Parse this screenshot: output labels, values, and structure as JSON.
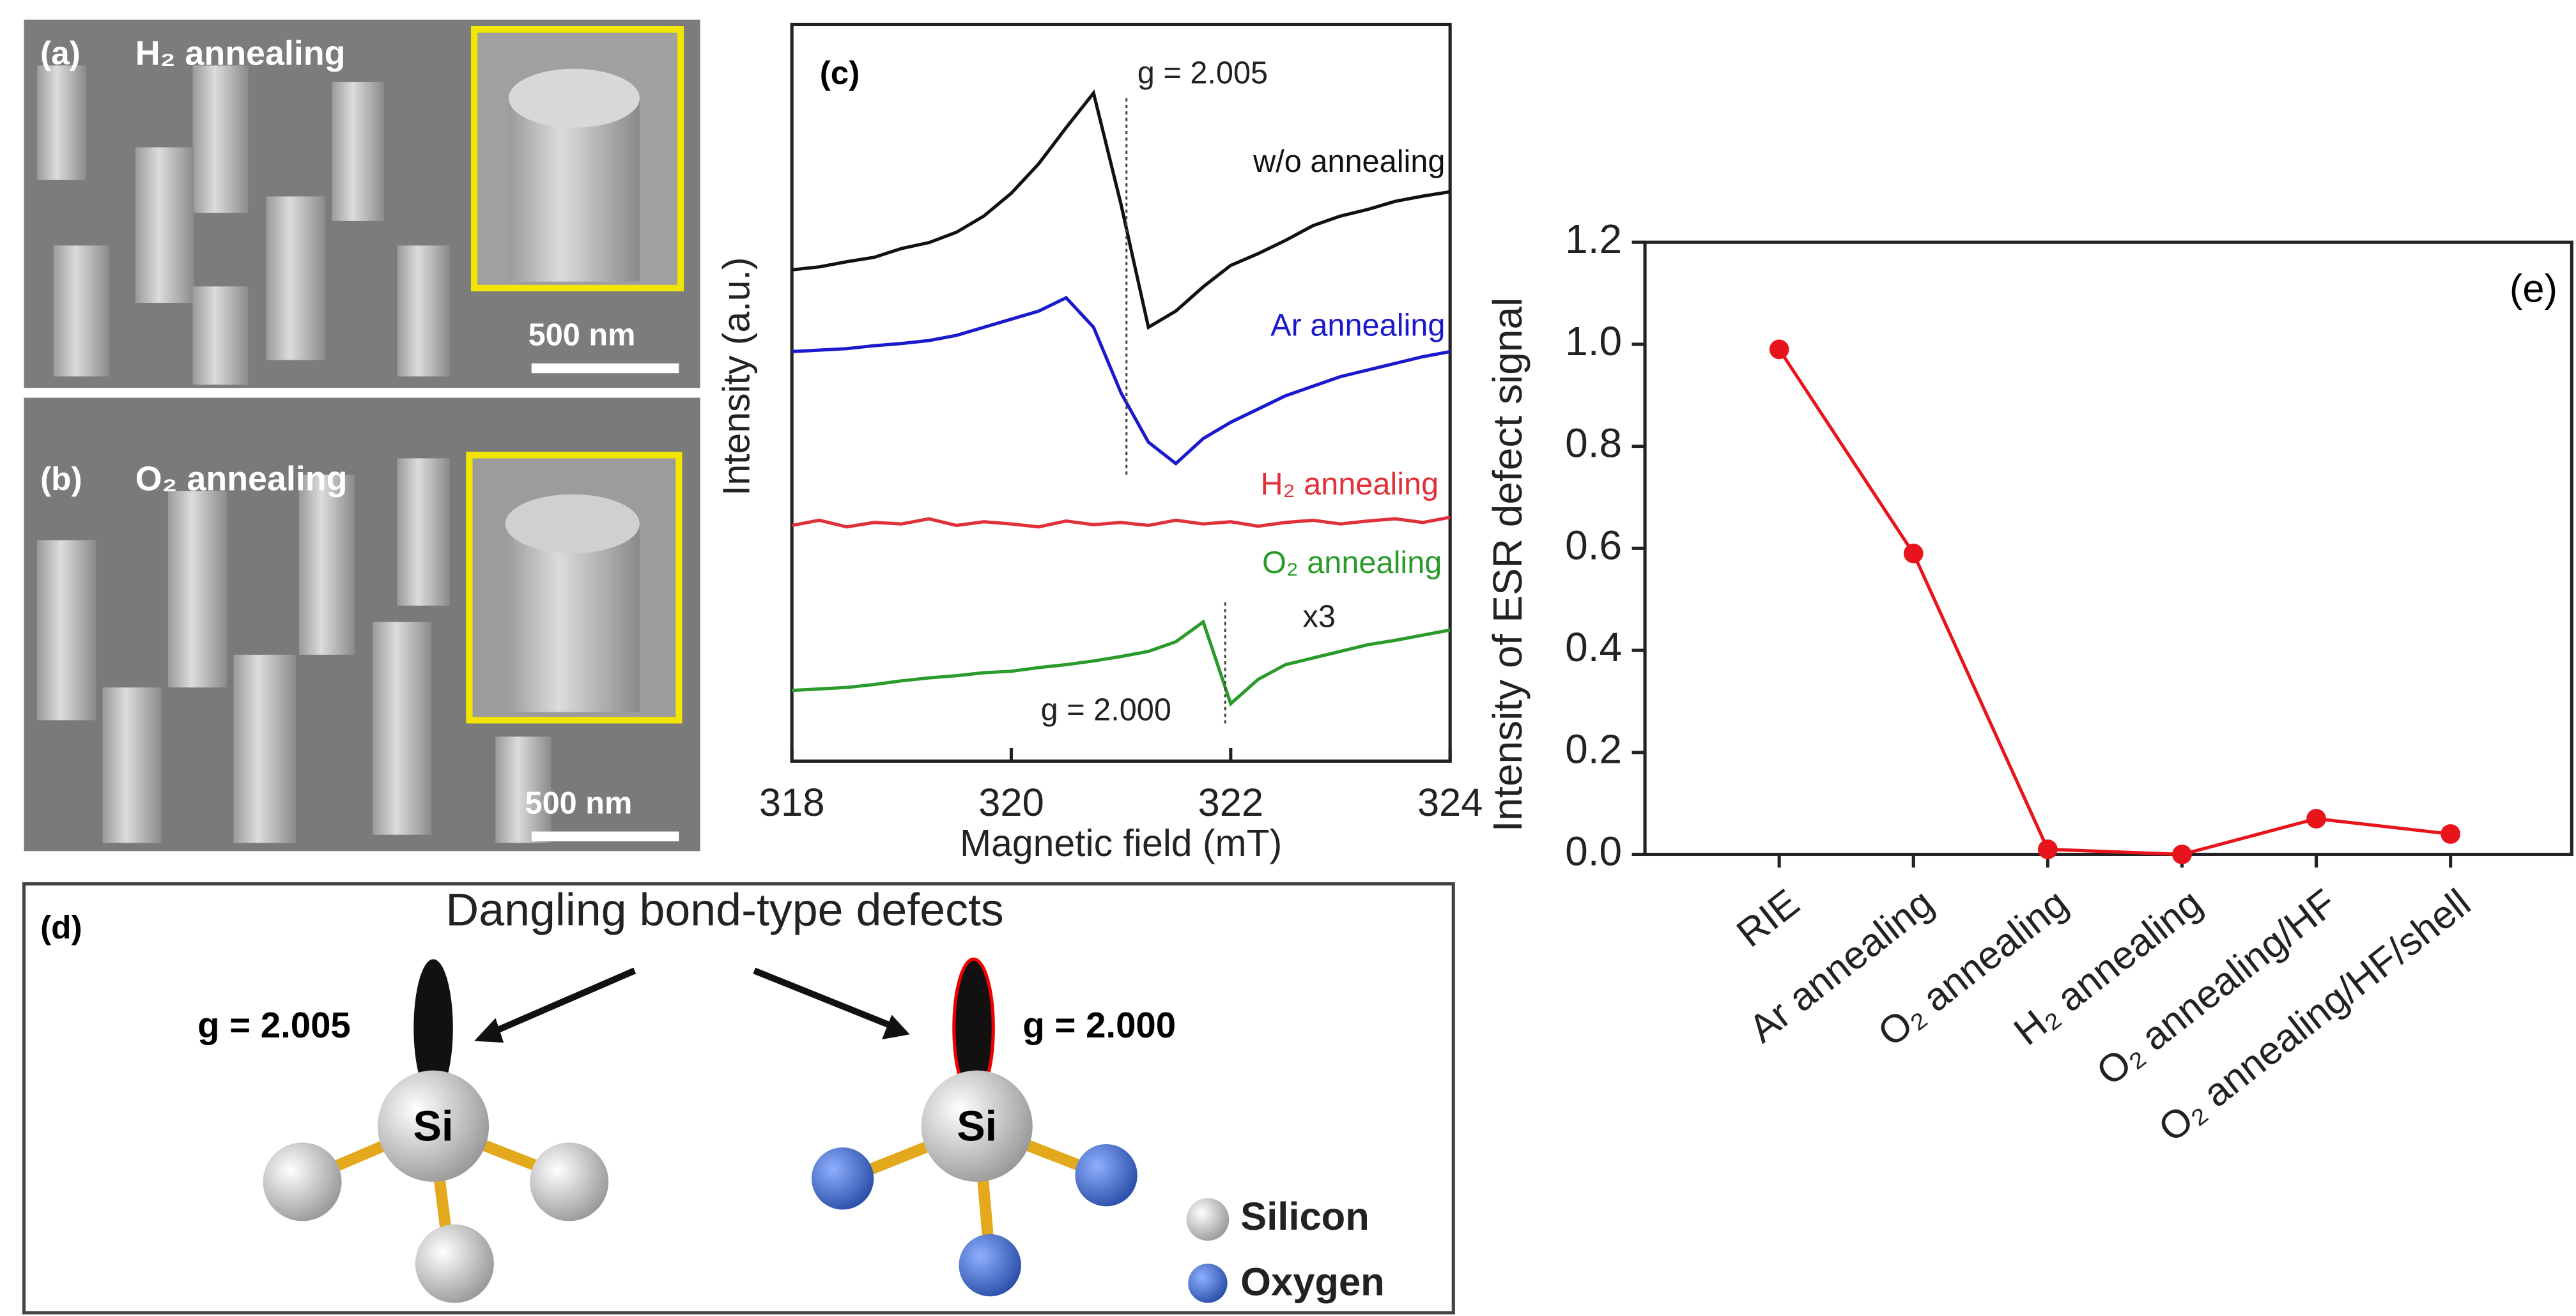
{
  "sem_panels": [
    {
      "label": "(a)",
      "title": "H₂ annealing",
      "scale_bar": "500 nm"
    },
    {
      "label": "(b)",
      "title": "O₂ annealing",
      "scale_bar": "500 nm"
    }
  ],
  "chart_data": [
    {
      "type": "line",
      "label": "(c)",
      "xlabel": "Magnetic field (mT)",
      "ylabel": "Intensity (a.u.)",
      "xlim": [
        318,
        324
      ],
      "xticks": [
        318,
        320,
        322,
        324
      ],
      "ylim": [
        0,
        10
      ],
      "x": [
        318,
        318.25,
        318.5,
        318.75,
        319,
        319.25,
        319.5,
        319.75,
        320,
        320.25,
        320.5,
        320.75,
        321,
        321.25,
        321.5,
        321.75,
        322,
        322.25,
        322.5,
        322.75,
        323,
        323.25,
        323.5,
        323.75,
        324
      ],
      "series": [
        {
          "name": "w/o annealing",
          "color": "#111111",
          "values": [
            6.67,
            6.71,
            6.78,
            6.84,
            6.96,
            7.04,
            7.18,
            7.4,
            7.71,
            8.11,
            8.6,
            9.07,
            7.56,
            5.89,
            6.11,
            6.44,
            6.73,
            6.89,
            7.07,
            7.27,
            7.4,
            7.49,
            7.6,
            7.67,
            7.73
          ]
        },
        {
          "name": "Ar annealing",
          "color": "#1a1acc",
          "values": [
            5.56,
            5.58,
            5.6,
            5.64,
            5.67,
            5.71,
            5.78,
            5.89,
            6,
            6.11,
            6.29,
            5.89,
            5,
            4.33,
            4.04,
            4.38,
            4.6,
            4.78,
            4.96,
            5.09,
            5.22,
            5.31,
            5.4,
            5.49,
            5.56
          ]
        },
        {
          "name": "H₂ annealing",
          "color": "#e0303a",
          "values": [
            3.2,
            3.27,
            3.18,
            3.24,
            3.22,
            3.29,
            3.2,
            3.25,
            3.22,
            3.18,
            3.26,
            3.21,
            3.24,
            3.2,
            3.27,
            3.22,
            3.25,
            3.19,
            3.24,
            3.27,
            3.22,
            3.26,
            3.29,
            3.24,
            3.31
          ]
        },
        {
          "name": "O₂ annealing",
          "color": "#2a9a2a",
          "values": [
            0.96,
            0.98,
            1,
            1.04,
            1.09,
            1.13,
            1.16,
            1.2,
            1.22,
            1.27,
            1.31,
            1.36,
            1.42,
            1.49,
            1.62,
            1.89,
            0.78,
            1.11,
            1.31,
            1.4,
            1.49,
            1.58,
            1.64,
            1.71,
            1.78
          ]
        }
      ],
      "annotations": [
        {
          "text": "g = 2.005",
          "x": 321.05
        },
        {
          "text": "g = 2.000",
          "x": 321.95
        },
        {
          "text": "x3"
        }
      ]
    },
    {
      "type": "line",
      "label": "(e)",
      "ylabel": "Intensity of ESR defect signal",
      "categories": [
        "RIE",
        "Ar annealing",
        "O₂ annealing",
        "H₂ annealing",
        "O₂ annealing/HF",
        "O₂ annealing/HF/shell"
      ],
      "values": [
        0.99,
        0.59,
        0.01,
        0,
        0.07,
        0.04
      ],
      "color": "#e8141c",
      "markers": true,
      "ylim": [
        0,
        1.2
      ],
      "yticks": [
        {
          "value": 0,
          "label": "0.0"
        },
        {
          "value": 0.2,
          "label": "0.2"
        },
        {
          "value": 0.4,
          "label": "0.4"
        },
        {
          "value": 0.6,
          "label": "0.6"
        },
        {
          "value": 0.8,
          "label": "0.8"
        },
        {
          "value": 1,
          "label": "1.0"
        },
        {
          "value": 1.2,
          "label": "1.2"
        }
      ]
    }
  ],
  "diagram": {
    "label": "(d)",
    "title": "Dangling bond-type defects",
    "left": {
      "g": "g = 2.005",
      "atom": "Si"
    },
    "right": {
      "g": "g = 2.000",
      "atom": "Si"
    },
    "legend": [
      "Silicon",
      "Oxygen"
    ]
  }
}
